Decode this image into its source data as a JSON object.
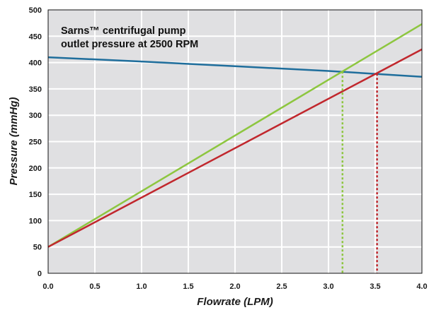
{
  "chart_data": {
    "type": "line",
    "xlabel": "Flowrate (LPM)",
    "ylabel": "Pressure (mmHg)",
    "annotation": [
      "Sarns™ centrifugal pump",
      "outlet pressure at 2500 RPM"
    ],
    "xlim": [
      0,
      4
    ],
    "ylim": [
      0,
      500
    ],
    "x_ticks": [
      "0.0",
      "0.5",
      "1.0",
      "1.5",
      "2.0",
      "2.5",
      "3.0",
      "3.5",
      "4.0"
    ],
    "y_ticks": [
      "0",
      "50",
      "100",
      "150",
      "200",
      "250",
      "300",
      "350",
      "400",
      "450",
      "500"
    ],
    "grid": true,
    "background": "#e0e0e2",
    "series": [
      {
        "color": "#1f6e9c",
        "style": "solid",
        "points": [
          [
            0,
            410
          ],
          [
            1,
            402
          ],
          [
            2,
            393
          ],
          [
            3,
            384
          ],
          [
            4,
            373
          ]
        ]
      },
      {
        "color": "#8dc63f",
        "style": "solid",
        "points": [
          [
            0,
            50
          ],
          [
            4,
            473
          ]
        ]
      },
      {
        "color": "#c1272d",
        "style": "solid",
        "points": [
          [
            0,
            50
          ],
          [
            4,
            425
          ]
        ]
      }
    ],
    "markers": [
      {
        "color": "#8dc63f",
        "style": "dotted",
        "x": 3.15,
        "y": 383
      },
      {
        "color": "#c1272d",
        "style": "dotted",
        "x": 3.52,
        "y": 379
      }
    ]
  }
}
